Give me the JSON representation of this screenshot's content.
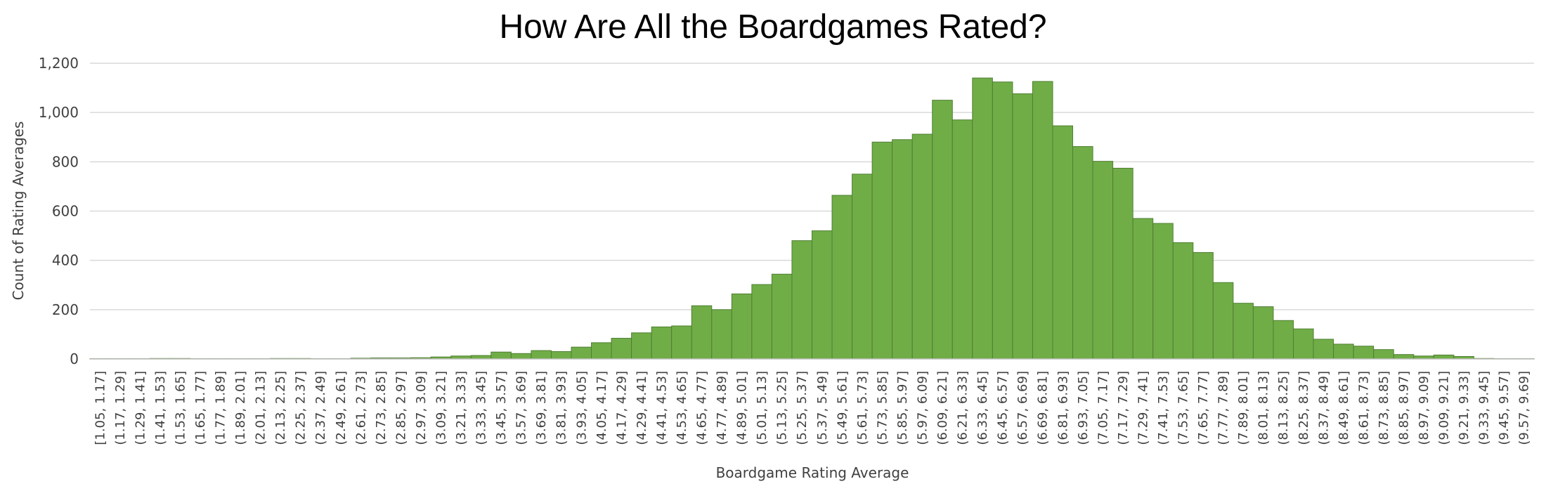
{
  "chart_data": {
    "type": "bar",
    "title": "How Are All the Boardgames Rated?",
    "xlabel": "Boardgame Rating Average",
    "ylabel": "Count of Rating Averages",
    "ylim": [
      0,
      1200
    ],
    "yticks": [
      "0",
      "200",
      "400",
      "600",
      "800",
      "1,000",
      "1,200"
    ],
    "ytick_values": [
      0,
      200,
      400,
      600,
      800,
      1000,
      1200
    ],
    "grid": true,
    "legend": "none",
    "bar_color": "#70ad47",
    "bar_edge_color": "#507e32",
    "categories": [
      "[1.05, 1.17]",
      "(1.17, 1.29]",
      "(1.29, 1.41]",
      "(1.41, 1.53]",
      "(1.53, 1.65]",
      "(1.65, 1.77]",
      "(1.77, 1.89]",
      "(1.89, 2.01]",
      "(2.01, 2.13]",
      "(2.13, 2.25]",
      "(2.25, 2.37]",
      "(2.37, 2.49]",
      "(2.49, 2.61]",
      "(2.61, 2.73]",
      "(2.73, 2.85]",
      "(2.85, 2.97]",
      "(2.97, 3.09]",
      "(3.09, 3.21]",
      "(3.21, 3.33]",
      "(3.33, 3.45]",
      "(3.45, 3.57]",
      "(3.57, 3.69]",
      "(3.69, 3.81]",
      "(3.81, 3.93]",
      "(3.93, 4.05]",
      "(4.05, 4.17]",
      "(4.17, 4.29]",
      "(4.29, 4.41]",
      "(4.41, 4.53]",
      "(4.53, 4.65]",
      "(4.65, 4.77]",
      "(4.77, 4.89]",
      "(4.89, 5.01]",
      "(5.01, 5.13]",
      "(5.13, 5.25]",
      "(5.25, 5.37]",
      "(5.37, 5.49]",
      "(5.49, 5.61]",
      "(5.61, 5.73]",
      "(5.73, 5.85]",
      "(5.85, 5.97]",
      "(5.97, 6.09]",
      "(6.09, 6.21]",
      "(6.21, 6.33]",
      "(6.33, 6.45]",
      "(6.45, 6.57]",
      "(6.57, 6.69]",
      "(6.69, 6.81]",
      "(6.81, 6.93]",
      "(6.93, 7.05]",
      "(7.05, 7.17]",
      "(7.17, 7.29]",
      "(7.29, 7.41]",
      "(7.41, 7.53]",
      "(7.53, 7.65]",
      "(7.65, 7.77]",
      "(7.77, 7.89]",
      "(7.89, 8.01]",
      "(8.01, 8.13]",
      "(8.13, 8.25]",
      "(8.25, 8.37]",
      "(8.37, 8.49]",
      "(8.49, 8.61]",
      "(8.61, 8.73]",
      "(8.73, 8.85]",
      "(8.85, 8.97]",
      "(8.97, 9.09]",
      "(9.09, 9.21]",
      "(9.21, 9.33]",
      "(9.33, 9.45]",
      "(9.45, 9.57]",
      "(9.57, 9.69]"
    ],
    "values": [
      1,
      1,
      1,
      2,
      2,
      1,
      1,
      1,
      1,
      2,
      2,
      1,
      1,
      3,
      4,
      4,
      5,
      8,
      12,
      14,
      28,
      22,
      34,
      30,
      48,
      66,
      84,
      106,
      130,
      134,
      216,
      200,
      264,
      302,
      344,
      480,
      520,
      664,
      750,
      880,
      890,
      912,
      1050,
      970,
      1140,
      1124,
      1076,
      1126,
      946,
      862,
      802,
      774,
      570,
      550,
      472,
      432,
      310,
      226,
      212,
      156,
      122,
      80,
      60,
      52,
      38,
      18,
      12,
      16,
      10,
      2,
      1,
      1
    ]
  }
}
